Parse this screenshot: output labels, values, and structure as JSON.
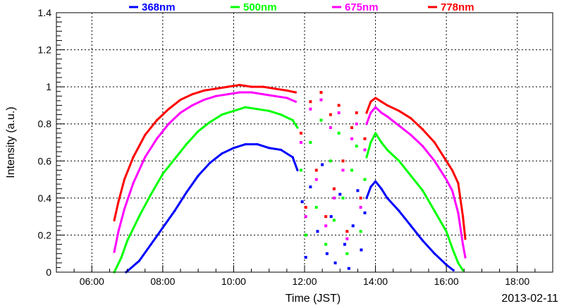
{
  "chart_data": {
    "type": "scatter",
    "title": "",
    "xlabel": "Time (JST)",
    "ylabel": "Intensity (a.u.)",
    "date_label": "2013-02-11",
    "xlim": [
      "05:00",
      "19:00"
    ],
    "ylim": [
      0,
      1.4
    ],
    "x_ticks": [
      "06:00",
      "08:00",
      "10:00",
      "12:00",
      "14:00",
      "16:00",
      "18:00"
    ],
    "y_ticks": [
      "0",
      "0.2",
      "0.4",
      "0.6",
      "0.8",
      "1",
      "1.2",
      "1.4"
    ],
    "grid": true,
    "legend_position": "top",
    "series": [
      {
        "name": "368nm",
        "color": "#0000ff",
        "morning": [
          [
            "06:58",
            0.0
          ],
          [
            "07:20",
            0.06
          ],
          [
            "07:40",
            0.15
          ],
          [
            "08:00",
            0.24
          ],
          [
            "08:20",
            0.33
          ],
          [
            "08:40",
            0.43
          ],
          [
            "09:00",
            0.52
          ],
          [
            "09:20",
            0.59
          ],
          [
            "09:40",
            0.64
          ],
          [
            "10:00",
            0.67
          ],
          [
            "10:20",
            0.69
          ],
          [
            "10:40",
            0.69
          ],
          [
            "11:00",
            0.67
          ],
          [
            "11:20",
            0.66
          ],
          [
            "11:40",
            0.62
          ],
          [
            "11:48",
            0.55
          ]
        ],
        "scatter": [
          [
            "11:56",
            0.38
          ],
          [
            "12:02",
            0.08
          ],
          [
            "12:10",
            0.46
          ],
          [
            "12:22",
            0.22
          ],
          [
            "12:30",
            0.58
          ],
          [
            "12:38",
            0.1
          ],
          [
            "12:45",
            0.3
          ],
          [
            "12:52",
            0.05
          ],
          [
            "13:00",
            0.42
          ],
          [
            "13:08",
            0.15
          ],
          [
            "13:15",
            0.02
          ],
          [
            "13:22",
            0.25
          ],
          [
            "13:30",
            0.44
          ],
          [
            "13:36",
            0.12
          ],
          [
            "13:42",
            0.32
          ]
        ],
        "afternoon": [
          [
            "13:45",
            0.4
          ],
          [
            "13:52",
            0.46
          ],
          [
            "14:00",
            0.49
          ],
          [
            "14:10",
            0.45
          ],
          [
            "14:20",
            0.4
          ],
          [
            "14:40",
            0.33
          ],
          [
            "15:00",
            0.25
          ],
          [
            "15:20",
            0.17
          ],
          [
            "15:40",
            0.1
          ],
          [
            "16:00",
            0.04
          ],
          [
            "16:12",
            0.01
          ]
        ]
      },
      {
        "name": "500nm",
        "color": "#00ff00",
        "morning": [
          [
            "06:38",
            0.0
          ],
          [
            "06:50",
            0.08
          ],
          [
            "07:00",
            0.17
          ],
          [
            "07:20",
            0.3
          ],
          [
            "07:40",
            0.42
          ],
          [
            "08:00",
            0.53
          ],
          [
            "08:20",
            0.61
          ],
          [
            "08:40",
            0.69
          ],
          [
            "09:00",
            0.76
          ],
          [
            "09:20",
            0.81
          ],
          [
            "09:40",
            0.85
          ],
          [
            "10:00",
            0.87
          ],
          [
            "10:20",
            0.89
          ],
          [
            "10:40",
            0.88
          ],
          [
            "11:00",
            0.87
          ],
          [
            "11:20",
            0.85
          ],
          [
            "11:40",
            0.82
          ],
          [
            "11:48",
            0.78
          ]
        ],
        "scatter": [
          [
            "11:54",
            0.55
          ],
          [
            "12:02",
            0.2
          ],
          [
            "12:10",
            0.7
          ],
          [
            "12:20",
            0.35
          ],
          [
            "12:28",
            0.82
          ],
          [
            "12:36",
            0.15
          ],
          [
            "12:44",
            0.6
          ],
          [
            "12:50",
            0.28
          ],
          [
            "12:58",
            0.75
          ],
          [
            "13:05",
            0.4
          ],
          [
            "13:12",
            0.1
          ],
          [
            "13:20",
            0.55
          ],
          [
            "13:28",
            0.68
          ],
          [
            "13:35",
            0.22
          ],
          [
            "13:42",
            0.5
          ]
        ],
        "afternoon": [
          [
            "13:45",
            0.62
          ],
          [
            "13:52",
            0.7
          ],
          [
            "14:00",
            0.75
          ],
          [
            "14:10",
            0.7
          ],
          [
            "14:20",
            0.66
          ],
          [
            "14:40",
            0.6
          ],
          [
            "15:00",
            0.52
          ],
          [
            "15:20",
            0.44
          ],
          [
            "15:40",
            0.33
          ],
          [
            "16:00",
            0.22
          ],
          [
            "16:10",
            0.13
          ],
          [
            "16:20",
            0.05
          ],
          [
            "16:28",
            0.01
          ]
        ]
      },
      {
        "name": "675nm",
        "color": "#ff00ff",
        "morning": [
          [
            "06:38",
            0.11
          ],
          [
            "06:45",
            0.22
          ],
          [
            "06:55",
            0.34
          ],
          [
            "07:10",
            0.48
          ],
          [
            "07:30",
            0.62
          ],
          [
            "07:50",
            0.72
          ],
          [
            "08:10",
            0.8
          ],
          [
            "08:30",
            0.86
          ],
          [
            "08:50",
            0.9
          ],
          [
            "09:10",
            0.93
          ],
          [
            "09:30",
            0.95
          ],
          [
            "09:50",
            0.96
          ],
          [
            "10:10",
            0.97
          ],
          [
            "10:30",
            0.97
          ],
          [
            "10:50",
            0.96
          ],
          [
            "11:10",
            0.95
          ],
          [
            "11:30",
            0.94
          ],
          [
            "11:45",
            0.92
          ]
        ],
        "scatter": [
          [
            "11:54",
            0.7
          ],
          [
            "12:02",
            0.3
          ],
          [
            "12:10",
            0.88
          ],
          [
            "12:20",
            0.5
          ],
          [
            "12:28",
            0.93
          ],
          [
            "12:36",
            0.25
          ],
          [
            "12:44",
            0.78
          ],
          [
            "12:50",
            0.4
          ],
          [
            "12:58",
            0.86
          ],
          [
            "13:05",
            0.55
          ],
          [
            "13:12",
            0.18
          ],
          [
            "13:20",
            0.72
          ],
          [
            "13:28",
            0.8
          ],
          [
            "13:35",
            0.35
          ],
          [
            "13:42",
            0.66
          ]
        ],
        "afternoon": [
          [
            "13:45",
            0.8
          ],
          [
            "13:52",
            0.86
          ],
          [
            "14:00",
            0.89
          ],
          [
            "14:10",
            0.86
          ],
          [
            "14:20",
            0.84
          ],
          [
            "14:40",
            0.79
          ],
          [
            "15:00",
            0.74
          ],
          [
            "15:20",
            0.68
          ],
          [
            "15:40",
            0.6
          ],
          [
            "16:00",
            0.5
          ],
          [
            "16:10",
            0.44
          ],
          [
            "16:20",
            0.32
          ],
          [
            "16:28",
            0.15
          ],
          [
            "16:32",
            0.08
          ]
        ]
      },
      {
        "name": "778nm",
        "color": "#ff0000",
        "morning": [
          [
            "06:38",
            0.28
          ],
          [
            "06:45",
            0.38
          ],
          [
            "06:55",
            0.5
          ],
          [
            "07:10",
            0.62
          ],
          [
            "07:30",
            0.74
          ],
          [
            "07:50",
            0.82
          ],
          [
            "08:10",
            0.88
          ],
          [
            "08:30",
            0.93
          ],
          [
            "08:50",
            0.96
          ],
          [
            "09:10",
            0.98
          ],
          [
            "09:30",
            0.99
          ],
          [
            "09:50",
            1.0
          ],
          [
            "10:10",
            1.01
          ],
          [
            "10:30",
            1.0
          ],
          [
            "10:50",
            1.0
          ],
          [
            "11:10",
            0.99
          ],
          [
            "11:30",
            0.98
          ],
          [
            "11:45",
            0.97
          ]
        ],
        "scatter": [
          [
            "11:54",
            0.75
          ],
          [
            "12:02",
            0.35
          ],
          [
            "12:10",
            0.92
          ],
          [
            "12:20",
            0.55
          ],
          [
            "12:28",
            0.97
          ],
          [
            "12:36",
            0.3
          ],
          [
            "12:44",
            0.85
          ],
          [
            "12:50",
            0.45
          ],
          [
            "12:58",
            0.9
          ],
          [
            "13:05",
            0.6
          ],
          [
            "13:12",
            0.22
          ],
          [
            "13:20",
            0.78
          ],
          [
            "13:28",
            0.86
          ],
          [
            "13:35",
            0.4
          ],
          [
            "13:42",
            0.72
          ]
        ],
        "afternoon": [
          [
            "13:45",
            0.86
          ],
          [
            "13:52",
            0.92
          ],
          [
            "14:00",
            0.94
          ],
          [
            "14:10",
            0.92
          ],
          [
            "14:20",
            0.9
          ],
          [
            "14:40",
            0.87
          ],
          [
            "15:00",
            0.83
          ],
          [
            "15:20",
            0.77
          ],
          [
            "15:40",
            0.7
          ],
          [
            "16:00",
            0.6
          ],
          [
            "16:10",
            0.55
          ],
          [
            "16:20",
            0.48
          ],
          [
            "16:28",
            0.3
          ],
          [
            "16:32",
            0.18
          ]
        ]
      }
    ]
  }
}
